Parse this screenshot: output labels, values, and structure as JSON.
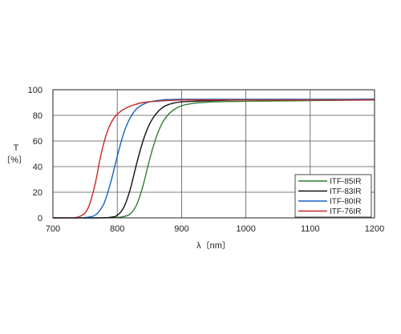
{
  "chart_data": {
    "type": "line",
    "title": "",
    "xlabel": "λ〔nm〕",
    "ylabel_line1": "T",
    "ylabel_line2": "〔%〕",
    "xlim": [
      700,
      1200
    ],
    "ylim": [
      0,
      100
    ],
    "x_ticks": [
      700,
      800,
      900,
      1000,
      1100,
      1200
    ],
    "y_ticks": [
      0,
      20,
      40,
      60,
      80,
      100
    ],
    "grid": true,
    "legend_position": "lower-right",
    "series": [
      {
        "name": "ITF-85IR",
        "color": "#2e7d32",
        "x": [
          700,
          780,
          800,
          810,
          820,
          830,
          840,
          850,
          860,
          870,
          880,
          890,
          900,
          920,
          950,
          1000,
          1100,
          1200
        ],
        "values": [
          0,
          0,
          0.3,
          1,
          3,
          10,
          25,
          45,
          62,
          74,
          81,
          85,
          87.5,
          89.5,
          90.5,
          91,
          91.5,
          92
        ]
      },
      {
        "name": "ITF-83IR",
        "color": "#111111",
        "x": [
          700,
          770,
          790,
          800,
          810,
          820,
          830,
          840,
          850,
          860,
          870,
          880,
          900,
          950,
          1000,
          1100,
          1200
        ],
        "values": [
          0,
          0,
          0.5,
          2,
          8,
          22,
          42,
          60,
          73,
          81,
          86,
          88.5,
          90.5,
          91.5,
          92,
          92.2,
          92.5
        ]
      },
      {
        "name": "ITF-80IR",
        "color": "#1565c0",
        "x": [
          700,
          740,
          760,
          770,
          780,
          790,
          800,
          810,
          820,
          830,
          840,
          850,
          870,
          900,
          950,
          1000,
          1100,
          1200
        ],
        "values": [
          0,
          0,
          1,
          4,
          12,
          28,
          48,
          66,
          78,
          85,
          88.5,
          90.5,
          92,
          92.5,
          92.5,
          92.5,
          92.5,
          92.5
        ]
      },
      {
        "name": "ITF-76IR",
        "color": "#c62828",
        "x": [
          700,
          730,
          745,
          755,
          765,
          775,
          785,
          795,
          805,
          815,
          825,
          840,
          860,
          900,
          950,
          1000,
          1100,
          1200
        ],
        "values": [
          0,
          0,
          2,
          8,
          25,
          50,
          68,
          78,
          83,
          86,
          88,
          90,
          91,
          92,
          92,
          92,
          92,
          92
        ]
      }
    ]
  }
}
